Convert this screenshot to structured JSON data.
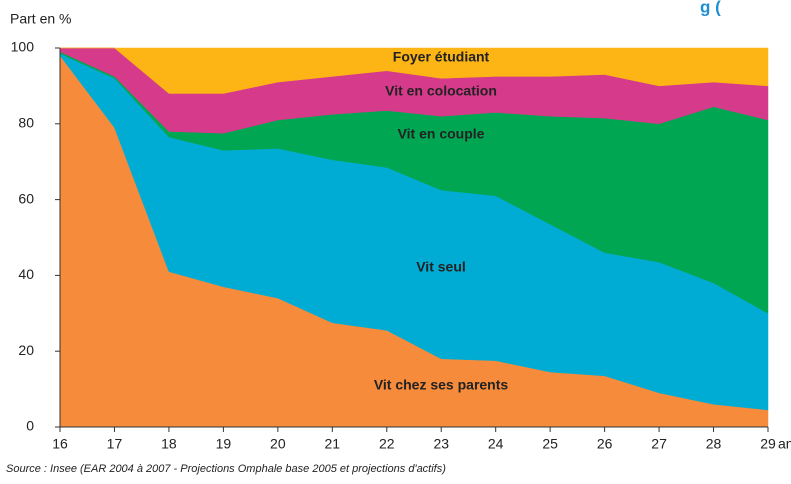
{
  "chart_data": {
    "type": "stacked_area",
    "title": "g (",
    "y_label": "Part en %",
    "x_unit": "ans",
    "source": "Source  : Insee (EAR 2004 à 2007 - Projections Omphale base 2005 et projections d'actifs)",
    "x": [
      16,
      17,
      18,
      19,
      20,
      21,
      22,
      23,
      24,
      25,
      26,
      27,
      28,
      29
    ],
    "xlim": [
      16,
      29
    ],
    "xticks": [
      16,
      17,
      18,
      19,
      20,
      21,
      22,
      23,
      24,
      25,
      26,
      27,
      28,
      29
    ],
    "ylim": [
      0,
      100
    ],
    "yticks": [
      0,
      20,
      40,
      60,
      80,
      100
    ],
    "series": [
      {
        "name": "Vit chez ses parents",
        "color": "#f58b3b",
        "values": [
          98,
          79,
          41,
          37,
          34,
          27.5,
          25.5,
          18,
          17.5,
          14.5,
          13.5,
          9,
          6,
          4.5
        ]
      },
      {
        "name": "Vit seul",
        "color": "#00acd4",
        "values": [
          0.5,
          13,
          35.5,
          36,
          39.5,
          43,
          43,
          44.5,
          43.5,
          39,
          32.5,
          34.5,
          32,
          25.5
        ]
      },
      {
        "name": "Vit en couple",
        "color": "#00a651",
        "values": [
          0.5,
          0.5,
          1.5,
          4.5,
          7.5,
          12,
          15,
          19.5,
          22,
          28.5,
          35.5,
          36.5,
          46.5,
          51
        ]
      },
      {
        "name": "Vit en colocation",
        "color": "#d63a8a",
        "values": [
          1,
          7.5,
          10,
          10.5,
          10,
          10,
          10.5,
          10,
          9.5,
          10.5,
          11.5,
          10,
          6.5,
          9
        ]
      },
      {
        "name": "Foyer étudiant",
        "color": "#fdb515",
        "values": [
          0,
          0,
          12,
          12,
          9,
          7.5,
          6,
          8,
          7.5,
          7.5,
          7,
          10,
          9,
          10
        ]
      }
    ]
  }
}
